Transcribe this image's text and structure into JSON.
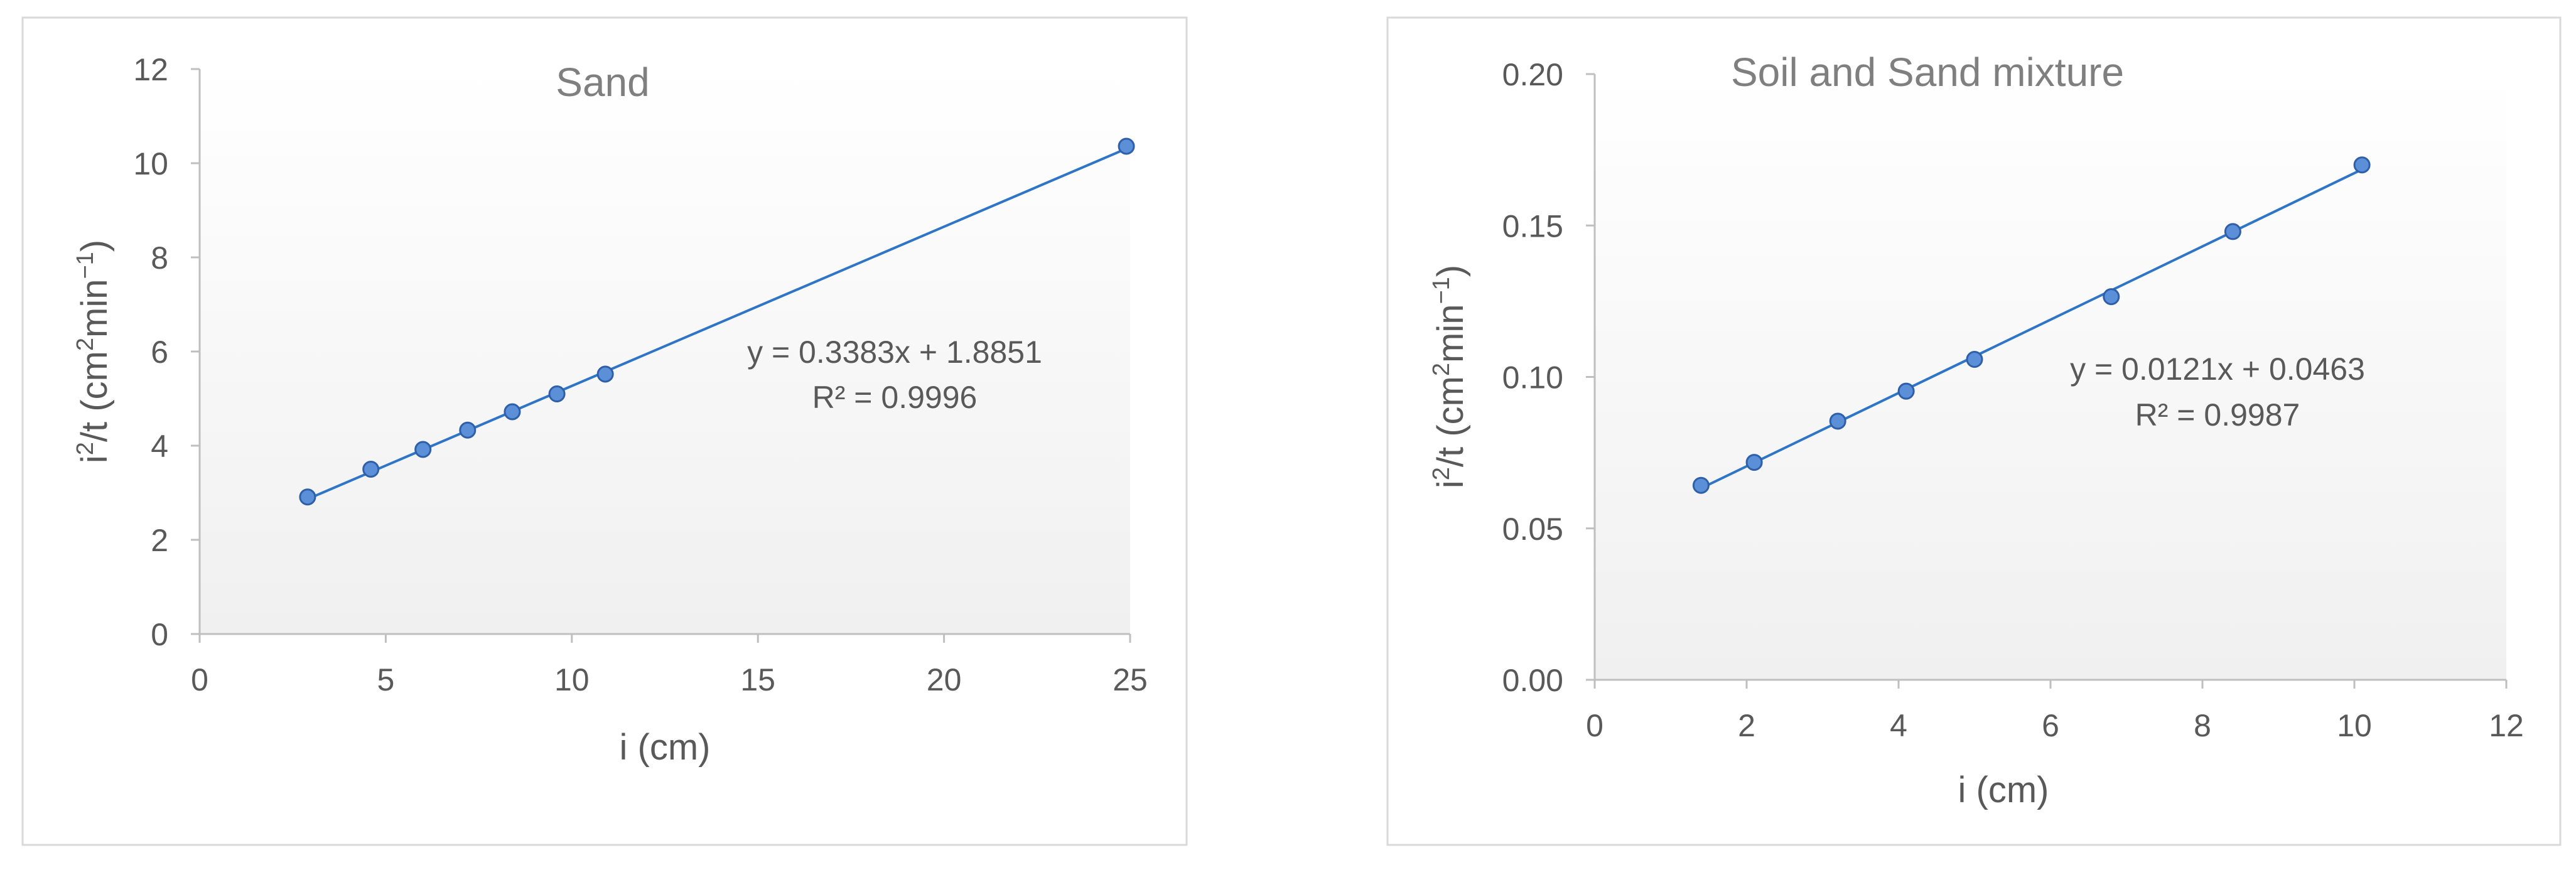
{
  "colors": {
    "marker_fill": "#5b8fd8",
    "marker_stroke": "#2e5fa8",
    "line": "#2e75c8",
    "axis": "#bfbfbf",
    "text": "#595959",
    "frame": "#d9d9d9",
    "plot_gradient_top": "#ffffff",
    "plot_gradient_bottom": "#f0f0f0"
  },
  "chart_data": [
    {
      "type": "scatter",
      "title": "Sand",
      "xlabel": "i (cm)",
      "ylabel_parts": [
        "i",
        "2",
        "/t (cm",
        "2",
        "min",
        "−1",
        ")"
      ],
      "xlim": [
        0,
        25
      ],
      "ylim": [
        0,
        12
      ],
      "x_ticks": [
        "0",
        "5",
        "10",
        "15",
        "20",
        "25"
      ],
      "y_ticks": [
        "0",
        "2",
        "4",
        "6",
        "8",
        "10",
        "12"
      ],
      "grid": false,
      "legend": "none",
      "series": [
        {
          "x": [
            2.9,
            4.6,
            6.0,
            7.2,
            8.4,
            9.6,
            10.9,
            24.9
          ],
          "y": [
            2.91,
            3.5,
            3.92,
            4.33,
            4.72,
            5.1,
            5.52,
            10.36
          ]
        }
      ],
      "trendline": {
        "slope": 0.3383,
        "intercept": 1.8851,
        "x_range": [
          2.9,
          24.9
        ]
      },
      "equation": "y = 0.3383x + 1.8851",
      "r_squared": "R² = 0.9996"
    },
    {
      "type": "scatter",
      "title": "Soil and Sand mixture",
      "xlabel": "i (cm)",
      "ylabel_parts": [
        "i",
        "2",
        "/t (cm",
        "2",
        "min",
        "−1",
        ")"
      ],
      "xlim": [
        0,
        12
      ],
      "ylim": [
        0,
        0.2
      ],
      "x_ticks": [
        "0",
        "2",
        "4",
        "6",
        "8",
        "10",
        "12"
      ],
      "y_ticks": [
        "0.00",
        "0.05",
        "0.10",
        "0.15",
        "0.20"
      ],
      "grid": false,
      "legend": "none",
      "series": [
        {
          "x": [
            1.4,
            2.1,
            3.2,
            4.1,
            5.0,
            6.8,
            8.4,
            10.1
          ],
          "y": [
            0.0642,
            0.0718,
            0.0854,
            0.0953,
            0.1058,
            0.1265,
            0.148,
            0.17
          ]
        }
      ],
      "trendline": {
        "slope": 0.0121,
        "intercept": 0.0463,
        "x_range": [
          1.4,
          10.1
        ]
      },
      "equation": "y = 0.0121x + 0.0463",
      "r_squared": "R² = 0.9987"
    }
  ]
}
